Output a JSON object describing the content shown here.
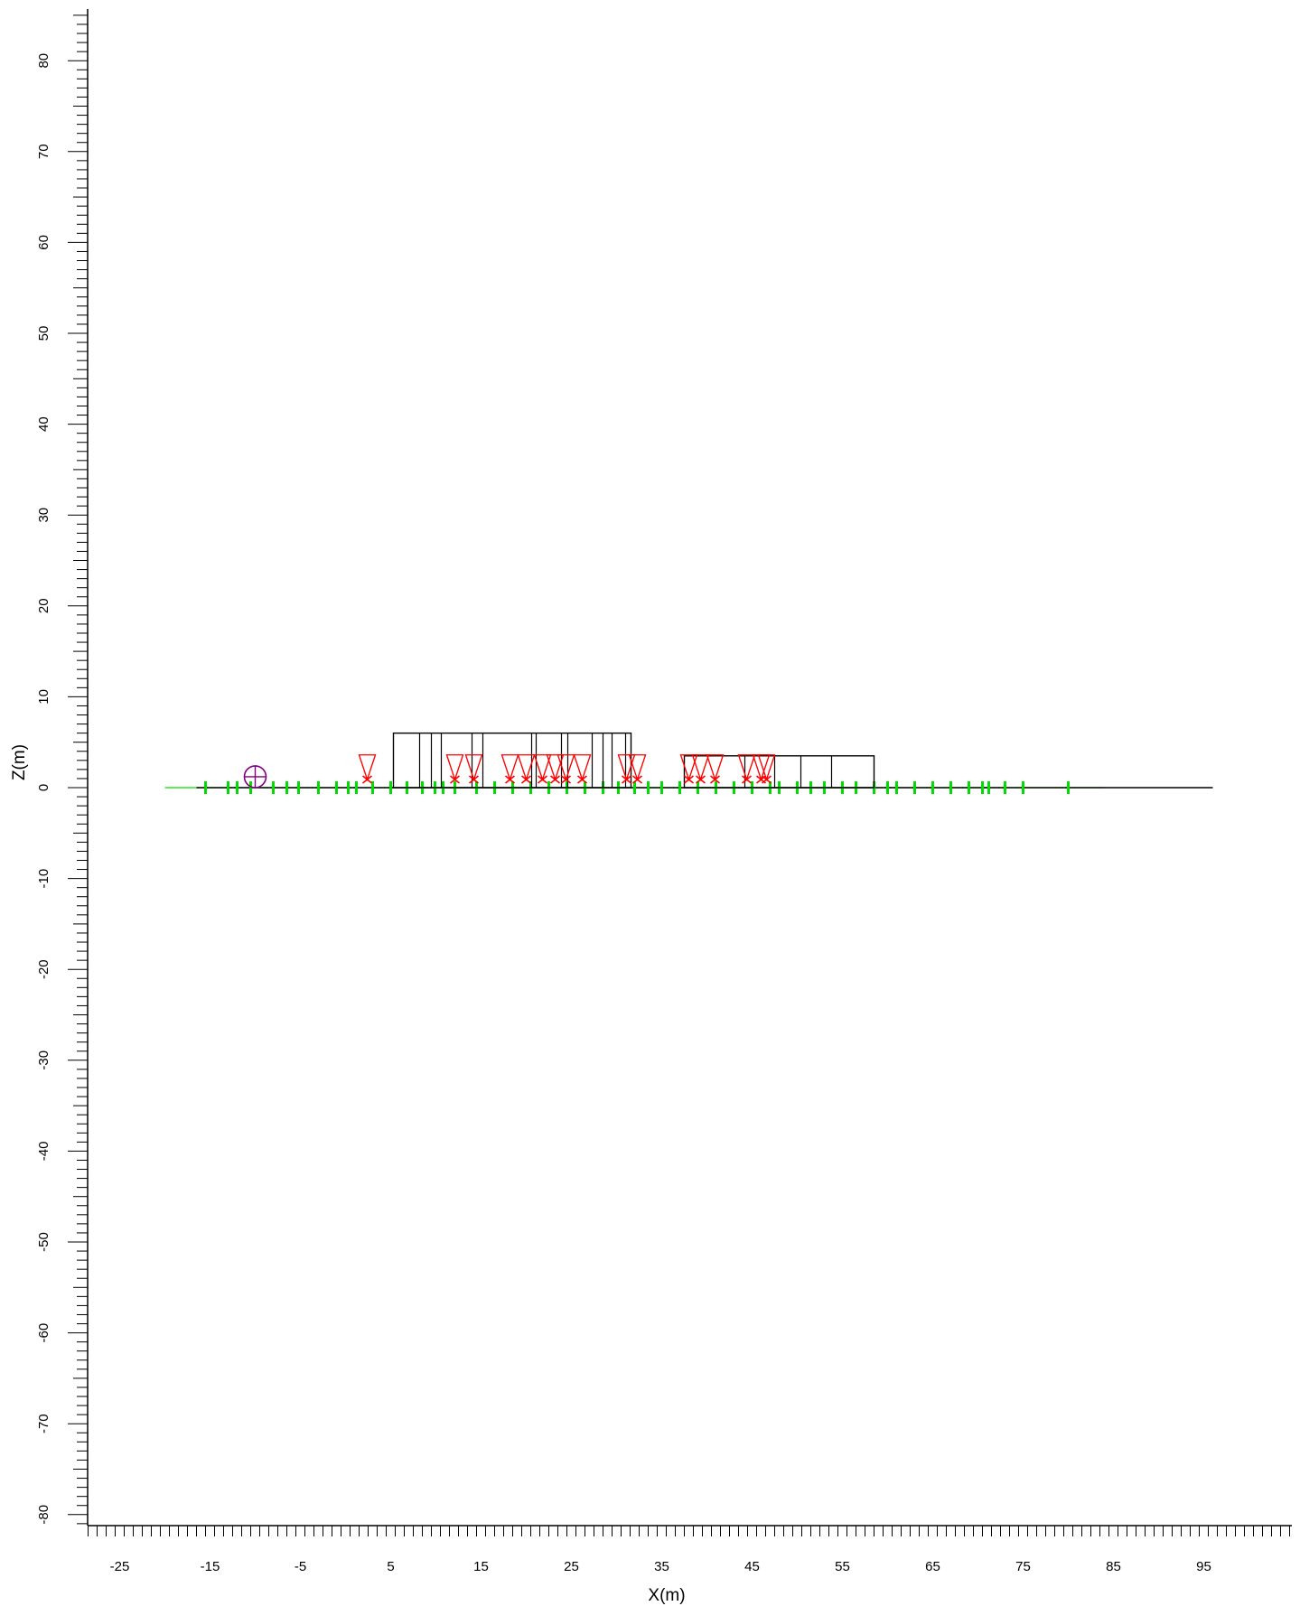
{
  "chart_data": {
    "type": "diagram",
    "xlabel": "X(m)",
    "ylabel": "Z(m)",
    "xlim": [
      -28.5,
      103
    ],
    "ylim": [
      -81,
      85
    ],
    "x_tick_labels": [
      -25,
      -15,
      -5,
      5,
      15,
      25,
      35,
      45,
      55,
      65,
      75,
      85,
      95
    ],
    "y_tick_labels": [
      80,
      70,
      60,
      50,
      40,
      30,
      20,
      10,
      0,
      -10,
      -20,
      -30,
      -40,
      -50,
      -60,
      -70,
      -80
    ],
    "colors": {
      "axis": "#000000",
      "structure": "#000000",
      "ground_marker": "#00dd00",
      "source": "#ff0000",
      "receiver": "#800080"
    },
    "ground_line": {
      "x_start": -16.5,
      "x_end": 96,
      "z": 0
    },
    "green_line": {
      "x_start": -20,
      "x_end": 84,
      "z": 0
    },
    "structures": [
      {
        "x1": 5.3,
        "x2": 31.6,
        "height": 6.0,
        "dividers": [
          8.2,
          9.5,
          10.6,
          14.0,
          15.2,
          20.6,
          21.1,
          23.9,
          24.6,
          27.3,
          28.5,
          29.5,
          31.0
        ]
      },
      {
        "x1": 37.5,
        "x2": 58.5,
        "height": 3.5,
        "dividers": [
          44.2,
          47.5,
          50.4,
          53.8
        ]
      }
    ],
    "sources": [
      2.4,
      12.1,
      14.2,
      18.2,
      20.0,
      21.8,
      23.2,
      24.4,
      26.2,
      31.1,
      32.3,
      38.0,
      39.3,
      40.9,
      44.4,
      46.0,
      46.6
    ],
    "ground_markers": [
      -15.5,
      -13.0,
      -12.0,
      -10.5,
      -8.0,
      -6.5,
      -5.2,
      -3.0,
      -1.0,
      0.3,
      1.2,
      3.0,
      5.0,
      6.8,
      8.5,
      9.9,
      10.8,
      12.1,
      14.5,
      16.5,
      18.5,
      20.5,
      22.5,
      24.5,
      26.5,
      28.5,
      30.2,
      32.0,
      33.5,
      35.0,
      37.0,
      39.0,
      41.0,
      43.0,
      45.0,
      47.0,
      48.0,
      50.0,
      51.5,
      53.0,
      55.0,
      56.5,
      58.5,
      60.0,
      61.0,
      63.0,
      65.0,
      67.0,
      69.0,
      70.5,
      71.2,
      73.0,
      75.0,
      80.0
    ],
    "receiver": {
      "x": -10.0,
      "z": 1.2
    }
  }
}
